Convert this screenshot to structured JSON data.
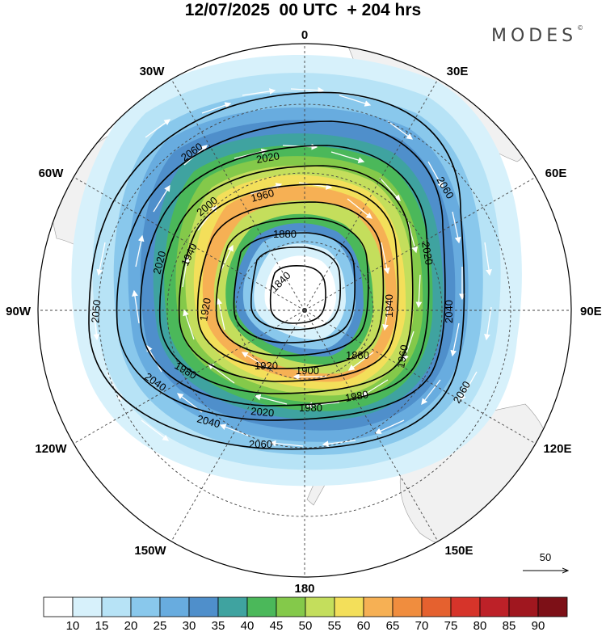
{
  "title": "12/07/2025  00 UTC  + 204 hrs",
  "brand": "MODES",
  "brand_mark": "©",
  "longitude_labels": {
    "top": "0",
    "bottom": "180",
    "left": "90W",
    "right": "90E",
    "w30": "30W",
    "e30": "30E",
    "w60": "60W",
    "e60": "60E",
    "w120": "120W",
    "e120": "120E",
    "w150": "150W",
    "e150": "150E"
  },
  "contour_labels": [
    "2060",
    "2020",
    "2000",
    "1960",
    "2060",
    "1880",
    "2020",
    "1940",
    "1840",
    "1920",
    "1960",
    "2050",
    "2020",
    "2040",
    "1940",
    "1920",
    "1880",
    "1900",
    "1980",
    "1980",
    "2060",
    "2040",
    "1980",
    "2000",
    "2020",
    "2040",
    "2060"
  ],
  "reference_vector": {
    "label": "50"
  },
  "colorbar": {
    "ticks": [
      "10",
      "15",
      "20",
      "25",
      "30",
      "35",
      "40",
      "45",
      "50",
      "55",
      "60",
      "65",
      "70",
      "75",
      "80",
      "85",
      "90"
    ],
    "colors": [
      "#ffffff",
      "#d7f1fb",
      "#b7e3f6",
      "#89c8ec",
      "#68acdf",
      "#4f8fcb",
      "#3fa3a0",
      "#4bb85a",
      "#84c94a",
      "#c4de5c",
      "#f3df5a",
      "#f6b054",
      "#f08d3e",
      "#e5612f",
      "#d6342a",
      "#bd2128",
      "#a0171f",
      "#7d1017"
    ]
  },
  "map": {
    "projection": "polar stereographic (south pole)",
    "variable": "wind speed",
    "center_dot": true
  }
}
